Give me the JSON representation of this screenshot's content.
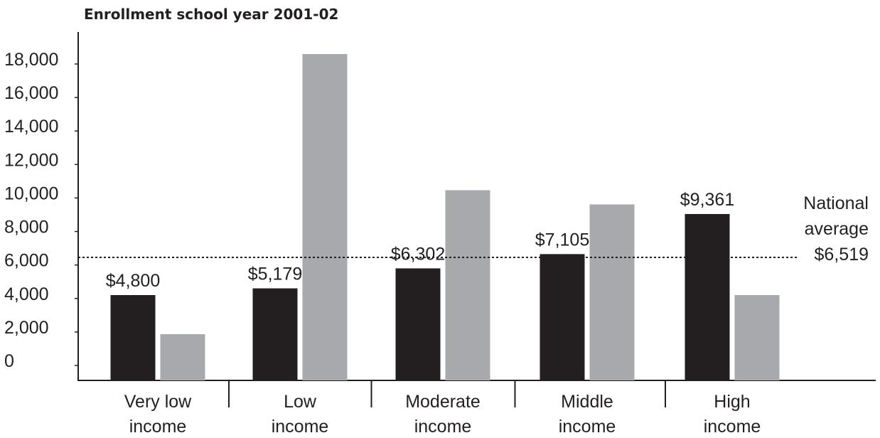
{
  "chart_data": {
    "type": "bar",
    "title": "Enrollment school year 2001-02",
    "xlabel": "",
    "ylabel": "",
    "ylim": [
      0,
      18000
    ],
    "y_ticks": [
      "18,000",
      "16,000",
      "14,000",
      "12,000",
      "10,000",
      "8,000",
      "6,000",
      "4,000",
      "2,000",
      "0"
    ],
    "categories": [
      [
        "Very low",
        "income"
      ],
      [
        "Low",
        "income"
      ],
      [
        "Moderate",
        "income"
      ],
      [
        "Middle",
        "income"
      ],
      [
        "High",
        "income"
      ]
    ],
    "series": [
      {
        "color": "#231f20",
        "values": [
          4800,
          5179,
          6302,
          7105,
          9361
        ],
        "labels": [
          "$4,800",
          "$5,179",
          "$6,302",
          "$7,105",
          "$9,361"
        ]
      },
      {
        "color": "#a7a9ac",
        "values": [
          2600,
          18600,
          10700,
          9900,
          4800
        ],
        "labels": []
      }
    ],
    "reference_line": {
      "value": 6519,
      "label_lines": [
        "National",
        "average",
        "$6,519"
      ]
    },
    "grid": false,
    "legend": "none"
  }
}
